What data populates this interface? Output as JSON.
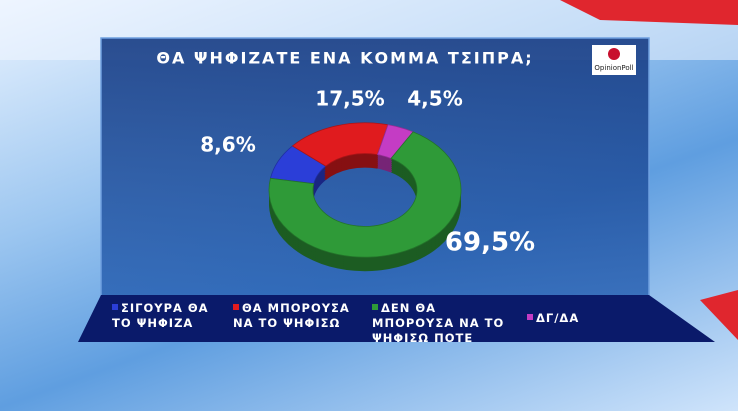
{
  "chart_data": {
    "type": "pie",
    "donut": true,
    "title": "ΘΑ ΨΗΦΙΖΑΤΕ ΕΝΑ ΚΟΜΜΑ ΤΣΙΠΡΑ;",
    "logo": "OpinionPoll",
    "categories": [
      "ΣΙΓΟΥΡΑ ΘΑ ΤΟ ΨΗΦΙΖΑ",
      "ΘΑ ΜΠΟΡΟΥΣΑ ΝΑ ΤΟ ΨΗΦΙΣΩ",
      "ΔΕΝ ΘΑ ΜΠΟΡΟΥΣΑ ΝΑ ΤΟ ΨΗΦΙΣΩ ΠΟΤΕ",
      "ΔΓ/ΔΑ"
    ],
    "values": [
      8.6,
      17.5,
      69.5,
      4.5
    ],
    "value_labels": [
      "8,6%",
      "17,5%",
      "69,5%",
      "4,5%"
    ],
    "colors": [
      "#2b3ed8",
      "#e01b1e",
      "#2f9a38",
      "#c43cc4"
    ]
  }
}
